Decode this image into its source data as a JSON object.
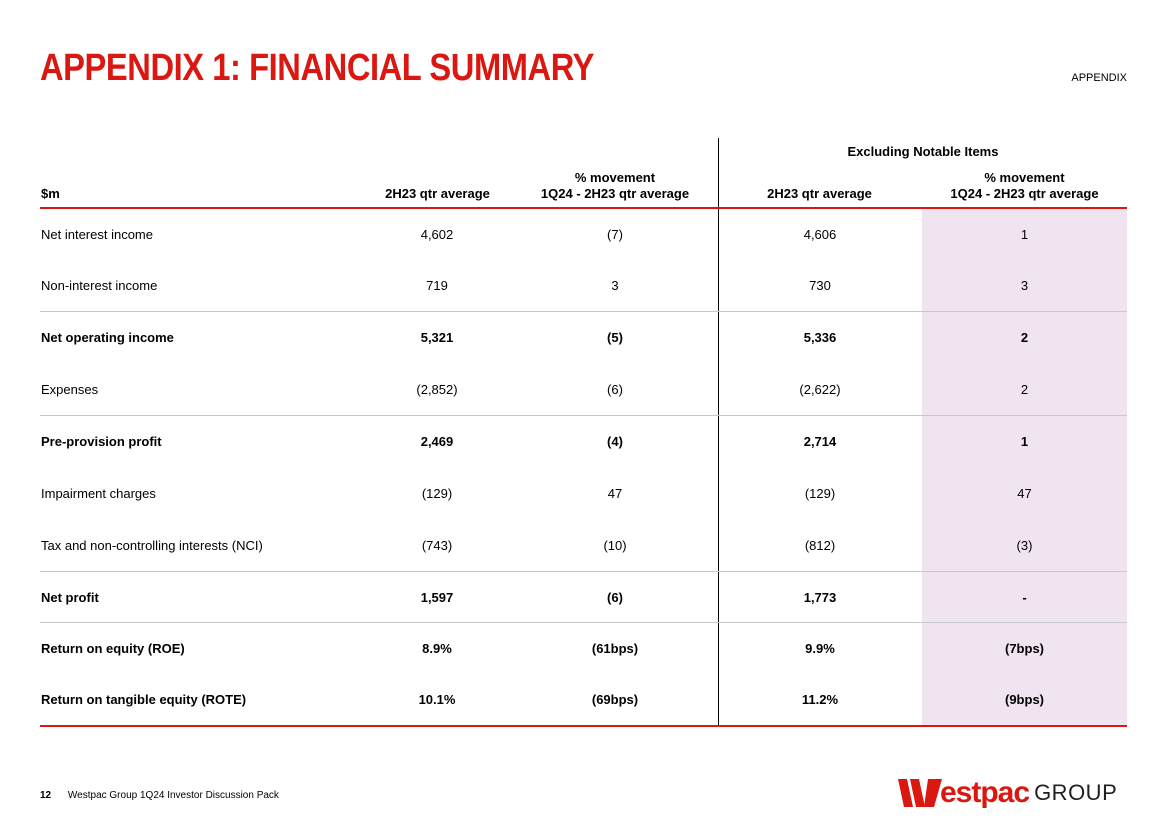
{
  "page": {
    "title": "APPENDIX 1: FINANCIAL SUMMARY",
    "section_tag": "APPENDIX"
  },
  "table": {
    "group_header": "Excluding Notable Items",
    "columns": {
      "label": "$m",
      "c1": "2H23 qtr average",
      "c2_line1": "% movement",
      "c2_line2": "1Q24 - 2H23 qtr average",
      "c3": "2H23 qtr average",
      "c4_line1": "% movement",
      "c4_line2": "1Q24 - 2H23 qtr average"
    },
    "rows": [
      {
        "label": "Net interest income",
        "c1": "4,602",
        "c2": "(7)",
        "c3": "4,606",
        "c4": "1",
        "bold": false
      },
      {
        "label": "Non-interest income",
        "c1": "719",
        "c2": "3",
        "c3": "730",
        "c4": "3",
        "bold": false
      },
      {
        "label": "Net operating income",
        "c1": "5,321",
        "c2": "(5)",
        "c3": "5,336",
        "c4": "2",
        "bold": true
      },
      {
        "label": "Expenses",
        "c1": "(2,852)",
        "c2": "(6)",
        "c3": "(2,622)",
        "c4": "2",
        "bold": false
      },
      {
        "label": "Pre-provision profit",
        "c1": "2,469",
        "c2": "(4)",
        "c3": "2,714",
        "c4": "1",
        "bold": true
      },
      {
        "label": "Impairment charges",
        "c1": "(129)",
        "c2": "47",
        "c3": "(129)",
        "c4": "47",
        "bold": false
      },
      {
        "label": "Tax and non-controlling interests (NCI)",
        "c1": "(743)",
        "c2": "(10)",
        "c3": "(812)",
        "c4": "(3)",
        "bold": false
      },
      {
        "label": "Net profit",
        "c1": "1,597",
        "c2": "(6)",
        "c3": "1,773",
        "c4": "-",
        "bold": true
      },
      {
        "label": "Return on equity (ROE)",
        "c1": "8.9%",
        "c2": "(61bps)",
        "c3": "9.9%",
        "c4": "(7bps)",
        "bold": true
      },
      {
        "label": "Return on tangible equity (ROTE)",
        "c1": "10.1%",
        "c2": "(69bps)",
        "c3": "11.2%",
        "c4": "(9bps)",
        "bold": true
      }
    ]
  },
  "footer": {
    "page_number": "12",
    "text": "Westpac Group 1Q24 Investor Discussion Pack"
  },
  "logo": {
    "brand": "estpac",
    "group": "GROUP",
    "brand_color": "#DA1710"
  },
  "colors": {
    "accent": "#DA1710",
    "highlight_column": "#F0E4F0"
  }
}
